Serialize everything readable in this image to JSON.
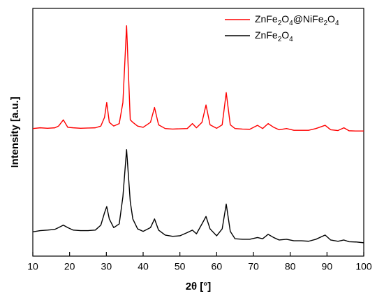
{
  "chart_data": {
    "type": "line",
    "x_label": "2θ [°]",
    "y_label": "Intensity [a.u.]",
    "x": [
      10,
      12,
      14,
      16,
      17,
      18.3,
      19.5,
      21,
      23,
      25,
      27,
      28.5,
      29.5,
      30.1,
      30.8,
      32,
      33.5,
      34.5,
      35.5,
      36.5,
      37.2,
      38.5,
      40,
      42,
      43.1,
      44.2,
      46,
      48,
      50,
      52,
      53.4,
      54.5,
      56,
      57.1,
      58.2,
      60,
      61.5,
      62.6,
      63.7,
      65,
      67,
      69,
      71.1,
      72.5,
      74,
      75.5,
      77,
      79,
      81,
      83,
      85,
      87,
      89.5,
      91,
      93,
      94.6,
      96,
      98,
      100
    ],
    "series": [
      {
        "name": "ZnFe2O4@NiFe2O4",
        "color": "#ff0000",
        "values": [
          51.5,
          51.8,
          51.6,
          51.8,
          52.5,
          55,
          52,
          51.8,
          51.6,
          51.7,
          51.8,
          52.5,
          56,
          62,
          54,
          52.5,
          53.5,
          62,
          93,
          55,
          54,
          52.5,
          52,
          54,
          60,
          53,
          51.5,
          51.3,
          51.4,
          51.5,
          53.5,
          51.8,
          54,
          61,
          53,
          51.6,
          53,
          66,
          53,
          51.5,
          51.3,
          51.2,
          52.8,
          51.5,
          53.5,
          52,
          51,
          51.5,
          50.8,
          50.8,
          50.8,
          51.5,
          52.8,
          51,
          50.7,
          51.8,
          50.6,
          50.5,
          50.5
        ]
      },
      {
        "name": "ZnFe2O4",
        "color": "#000000",
        "values": [
          9.8,
          10.3,
          10.5,
          10.8,
          11.5,
          12.5,
          11.5,
          10.5,
          10.3,
          10.3,
          10.5,
          12.5,
          17.5,
          20,
          15,
          11.5,
          13,
          24,
          43,
          22,
          15,
          11,
          10,
          11.5,
          15,
          10.5,
          8.5,
          8,
          8.2,
          9.5,
          10.5,
          9,
          13,
          16,
          11,
          8.2,
          11,
          21,
          10,
          7,
          6.8,
          6.8,
          7.5,
          7,
          8.8,
          7.5,
          6.5,
          6.8,
          6.2,
          6.2,
          6,
          6.8,
          8.5,
          6.5,
          6,
          6.5,
          5.8,
          5.7,
          5.4
        ]
      }
    ],
    "xlim": [
      10,
      100
    ],
    "xticks": [
      10,
      20,
      30,
      40,
      50,
      60,
      70,
      80,
      90,
      100
    ],
    "ylim": [
      0,
      100
    ]
  }
}
